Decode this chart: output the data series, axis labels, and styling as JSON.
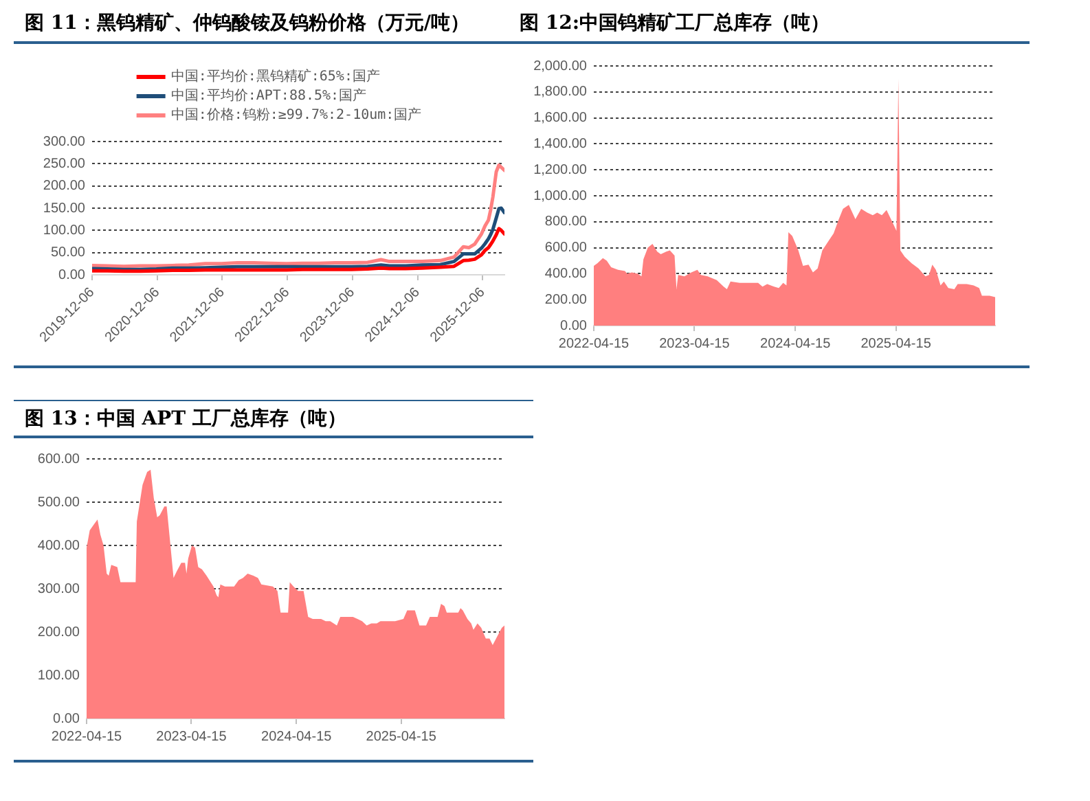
{
  "chart_data": [
    {
      "type": "line",
      "title": "图 11：黑钨精矿、仲钨酸铵及钨粉价格（万元/吨）",
      "x": [
        "2019-12-06",
        "2020-03-01",
        "2020-06-01",
        "2020-09-01",
        "2020-12-01",
        "2021-03-01",
        "2021-06-01",
        "2021-09-01",
        "2021-12-01",
        "2022-03-01",
        "2022-06-01",
        "2022-09-01",
        "2022-12-01",
        "2023-03-01",
        "2023-06-01",
        "2023-09-01",
        "2023-12-01",
        "2024-03-01",
        "2024-05-15",
        "2024-07-01",
        "2024-10-01",
        "2025-01-01",
        "2025-04-13",
        "2025-06-29",
        "2025-08-20",
        "2025-09-20",
        "2025-10-23",
        "2025-11-30",
        "2025-12-20",
        "2026-01-08",
        "2026-01-20",
        "2026-02-02",
        "2026-02-21",
        "2026-03-08",
        "2026-03-21",
        "2026-04-08"
      ],
      "series": [
        {
          "name": "中国:平均价:黑钨精矿:65%:国产",
          "color": "#ff0000",
          "values": [
            9,
            9,
            8,
            8,
            9,
            10,
            10,
            11,
            11,
            11,
            11,
            11,
            11,
            12,
            12,
            12,
            12,
            13,
            15,
            14,
            14,
            15,
            17,
            19,
            32,
            33,
            35,
            45,
            55,
            61,
            68,
            76,
            90,
            104,
            100,
            92
          ]
        },
        {
          "name": "中国:平均价:APT:88.5%:国产",
          "color": "#1f4e79",
          "values": [
            14,
            13,
            12,
            12,
            13,
            15,
            15,
            16,
            17,
            18,
            18,
            18,
            18,
            18,
            18,
            18,
            18,
            19,
            22,
            20,
            20,
            22,
            23,
            30,
            47,
            47,
            47,
            60,
            70,
            81,
            90,
            102,
            128,
            149,
            150,
            140
          ]
        },
        {
          "name": "中国:价格:钨粉:≥99.7%:2-10um:国产",
          "color": "#ff8080",
          "values": [
            21,
            20,
            19,
            20,
            20,
            21,
            22,
            25,
            25,
            27,
            27,
            26,
            25,
            26,
            26,
            27,
            27,
            28,
            34,
            30,
            30,
            30,
            32,
            40,
            63,
            61,
            69,
            92,
            110,
            123,
            145,
            175,
            232,
            247,
            242,
            235
          ]
        }
      ],
      "xlim": [
        "2019-12-06",
        "2026-04-08"
      ],
      "xticks": [
        "2019-12-06",
        "2020-12-06",
        "2021-12-06",
        "2022-12-06",
        "2023-12-06",
        "2024-12-06",
        "2025-12-06"
      ],
      "ylim": [
        0,
        300
      ],
      "yticks": [
        {
          "value": 0,
          "label": "0.00"
        },
        {
          "value": 50,
          "label": "50.00"
        },
        {
          "value": 100,
          "label": "100.00"
        },
        {
          "value": 150,
          "label": "150.00"
        },
        {
          "value": 200,
          "label": "200.00"
        },
        {
          "value": 250,
          "label": "250.00"
        },
        {
          "value": 300,
          "label": "300.00"
        }
      ],
      "grid": "y",
      "legend": "top"
    },
    {
      "type": "area",
      "title": "图 12:中国钨精矿工厂总库存（吨）",
      "color": "#ff7f7f",
      "x": [
        "2022-04-15",
        "2022-04-28",
        "2022-05-18",
        "2022-06-01",
        "2022-06-17",
        "2022-07-12",
        "2022-08-06",
        "2022-08-14",
        "2022-08-31",
        "2022-09-22",
        "2022-10-05",
        "2022-10-12",
        "2022-10-28",
        "2022-11-14",
        "2022-12-01",
        "2022-12-14",
        "2023-01-03",
        "2023-01-16",
        "2023-02-02",
        "2023-02-09",
        "2023-02-15",
        "2023-03-10",
        "2023-04-04",
        "2023-04-26",
        "2023-05-08",
        "2023-06-02",
        "2023-07-05",
        "2023-07-30",
        "2023-08-11",
        "2023-08-24",
        "2023-09-26",
        "2023-10-29",
        "2023-12-02",
        "2023-12-18",
        "2024-01-04",
        "2024-01-29",
        "2024-02-15",
        "2024-03-02",
        "2024-03-14",
        "2024-03-21",
        "2024-04-04",
        "2024-04-26",
        "2024-05-13",
        "2024-06-02",
        "2024-06-18",
        "2024-07-05",
        "2024-07-22",
        "2024-08-16",
        "2024-09-01",
        "2024-09-18",
        "2024-10-05",
        "2024-10-26",
        "2024-11-19",
        "2024-12-10",
        "2025-01-01",
        "2025-01-21",
        "2025-02-06",
        "2025-02-23",
        "2025-03-12",
        "2025-03-28",
        "2025-04-17",
        "2025-04-24",
        "2025-05-01",
        "2025-05-17",
        "2025-06-11",
        "2025-07-06",
        "2025-07-31",
        "2025-08-13",
        "2025-08-25",
        "2025-09-07",
        "2025-09-24",
        "2025-10-06",
        "2025-10-22",
        "2025-11-13",
        "2025-11-25",
        "2025-12-28",
        "2026-01-22",
        "2026-02-11",
        "2026-02-21",
        "2026-03-21",
        "2026-04-10"
      ],
      "values": [
        460,
        480,
        520,
        500,
        450,
        430,
        420,
        400,
        410,
        400,
        380,
        510,
        600,
        630,
        570,
        550,
        570,
        580,
        540,
        280,
        390,
        380,
        410,
        430,
        390,
        380,
        350,
        300,
        280,
        340,
        330,
        330,
        330,
        300,
        320,
        300,
        290,
        330,
        310,
        720,
        690,
        580,
        460,
        470,
        410,
        440,
        580,
        660,
        710,
        810,
        900,
        930,
        820,
        900,
        870,
        850,
        870,
        850,
        890,
        820,
        730,
        1900,
        580,
        530,
        480,
        440,
        380,
        390,
        470,
        430,
        310,
        340,
        290,
        280,
        320,
        320,
        310,
        290,
        230,
        230,
        220
      ],
      "xlim": [
        "2022-04-15",
        "2026-04-10"
      ],
      "xticks": [
        "2022-04-15",
        "2023-04-15",
        "2024-04-15",
        "2025-04-15"
      ],
      "ylim": [
        0,
        2000
      ],
      "yticks": [
        {
          "value": 0,
          "label": "0.00"
        },
        {
          "value": 200,
          "label": "200.00"
        },
        {
          "value": 400,
          "label": "400.00"
        },
        {
          "value": 600,
          "label": "600.00"
        },
        {
          "value": 800,
          "label": "800.00"
        },
        {
          "value": 1000,
          "label": "1,000.00"
        },
        {
          "value": 1200,
          "label": "1,200.00"
        },
        {
          "value": 1400,
          "label": "1,400.00"
        },
        {
          "value": 1600,
          "label": "1,600.00"
        },
        {
          "value": 1800,
          "label": "1,800.00"
        },
        {
          "value": 2000,
          "label": "2,000.00"
        }
      ],
      "grid": "y"
    },
    {
      "type": "area",
      "title": "图 13：中国 APT 工厂总库存（吨）",
      "color": "#ff7f7f",
      "x": [
        "2022-04-15",
        "2022-04-26",
        "2022-05-12",
        "2022-05-23",
        "2022-06-02",
        "2022-06-13",
        "2022-06-24",
        "2022-07-01",
        "2022-07-10",
        "2022-07-31",
        "2022-08-11",
        "2022-10-03",
        "2022-10-07",
        "2022-10-27",
        "2022-11-12",
        "2022-11-24",
        "2022-12-05",
        "2022-12-17",
        "2022-12-26",
        "2023-01-11",
        "2023-01-19",
        "2023-01-30",
        "2023-02-12",
        "2023-02-23",
        "2023-03-11",
        "2023-03-24",
        "2023-03-29",
        "2023-04-04",
        "2023-04-17",
        "2023-04-28",
        "2023-05-09",
        "2023-05-22",
        "2023-06-07",
        "2023-07-01",
        "2023-07-12",
        "2023-07-18",
        "2023-07-25",
        "2023-08-10",
        "2023-08-26",
        "2023-09-11",
        "2023-09-27",
        "2023-10-12",
        "2023-10-28",
        "2023-11-17",
        "2023-12-03",
        "2023-12-15",
        "2024-01-24",
        "2024-02-09",
        "2024-02-20",
        "2024-03-17",
        "2024-03-23",
        "2024-04-05",
        "2024-04-21",
        "2024-05-10",
        "2024-05-26",
        "2024-06-11",
        "2024-07-10",
        "2024-07-26",
        "2024-08-11",
        "2024-09-03",
        "2024-09-15",
        "2024-10-29",
        "2024-11-14",
        "2024-11-30",
        "2024-12-16",
        "2025-01-01",
        "2025-01-20",
        "2025-02-02",
        "2025-03-06",
        "2025-03-25",
        "2025-04-23",
        "2025-05-06",
        "2025-06-02",
        "2025-06-18",
        "2025-07-11",
        "2025-07-24",
        "2025-08-20",
        "2025-09-01",
        "2025-09-13",
        "2025-09-21",
        "2025-10-31",
        "2025-11-08",
        "2025-11-16",
        "2025-12-02",
        "2025-12-15",
        "2025-12-23",
        "2026-01-06",
        "2026-01-19",
        "2026-02-04",
        "2026-02-17",
        "2026-02-28",
        "2026-03-16",
        "2026-04-01",
        "2026-04-10"
      ],
      "values": [
        395,
        435,
        450,
        460,
        425,
        400,
        335,
        330,
        355,
        350,
        315,
        315,
        455,
        540,
        570,
        575,
        510,
        465,
        470,
        490,
        490,
        415,
        325,
        340,
        360,
        360,
        335,
        370,
        400,
        395,
        350,
        345,
        330,
        305,
        285,
        280,
        310,
        305,
        305,
        305,
        320,
        325,
        335,
        330,
        325,
        310,
        305,
        295,
        245,
        245,
        315,
        305,
        295,
        295,
        235,
        230,
        230,
        225,
        225,
        215,
        235,
        235,
        230,
        225,
        215,
        220,
        220,
        225,
        225,
        225,
        230,
        250,
        250,
        215,
        215,
        235,
        235,
        265,
        260,
        245,
        245,
        255,
        250,
        230,
        220,
        205,
        220,
        210,
        185,
        185,
        170,
        190,
        210,
        215
      ],
      "xlim": [
        "2022-04-15",
        "2026-04-10"
      ],
      "xticks": [
        "2022-04-15",
        "2023-04-15",
        "2024-04-15",
        "2025-04-15"
      ],
      "ylim": [
        0,
        600
      ],
      "yticks": [
        {
          "value": 0,
          "label": "0.00"
        },
        {
          "value": 100,
          "label": "100.00"
        },
        {
          "value": 200,
          "label": "200.00"
        },
        {
          "value": 300,
          "label": "300.00"
        },
        {
          "value": 400,
          "label": "400.00"
        },
        {
          "value": 500,
          "label": "500.00"
        },
        {
          "value": 600,
          "label": "600.00"
        }
      ],
      "grid": "y"
    }
  ]
}
